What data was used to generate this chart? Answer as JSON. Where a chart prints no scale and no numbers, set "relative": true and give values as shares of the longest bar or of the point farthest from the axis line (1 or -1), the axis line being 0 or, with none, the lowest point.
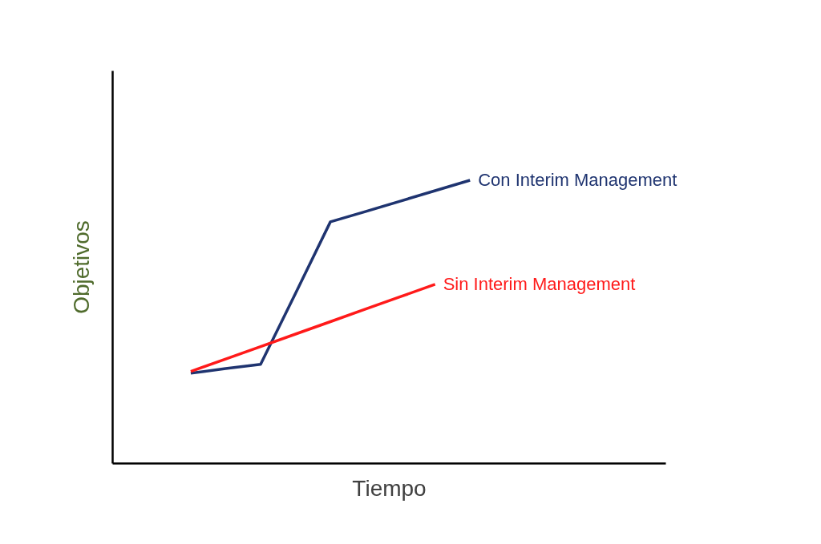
{
  "chart_data": {
    "type": "line",
    "relative": true,
    "xlabel": "Tiempo",
    "ylabel": "Objetivos",
    "legend": false,
    "marker": "none",
    "line_style": "solid",
    "grid": false,
    "categories": [
      null,
      null,
      null,
      null,
      null,
      null,
      null,
      null,
      null
    ],
    "series": [
      {
        "name": "Con Interim Management",
        "color": "#1f3470",
        "values": [
          0.318,
          0.334,
          0.349,
          0.6,
          0.853,
          0.889,
          0.926,
          0.963,
          1.0
        ]
      },
      {
        "name": "Sin Interim Management",
        "color": "#ff1a1a",
        "values": [
          0.324,
          0.368,
          0.412,
          0.456,
          0.5,
          0.544,
          0.588,
          0.632,
          null
        ]
      }
    ]
  }
}
